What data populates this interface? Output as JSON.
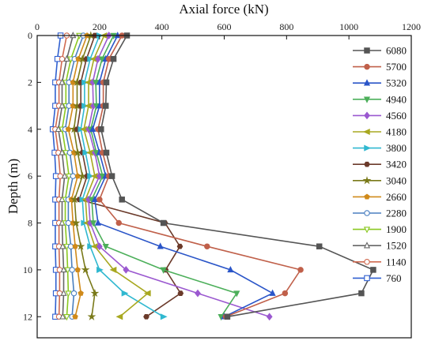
{
  "chart_data": {
    "type": "line",
    "xlabel": "Axial force (kN)",
    "ylabel": "Depth (m)",
    "x_axis_position": "top",
    "xlim": [
      0,
      1200
    ],
    "ylim": [
      0,
      12.9
    ],
    "y_reversed": true,
    "xticks": [
      0,
      200,
      400,
      600,
      800,
      1000,
      1200
    ],
    "yticks": [
      0,
      2,
      4,
      6,
      8,
      10,
      12
    ],
    "grid": false,
    "legend_position": "right",
    "depths": [
      0,
      1,
      2,
      3,
      4,
      5,
      6,
      7,
      8,
      9,
      10,
      11,
      12
    ],
    "series": [
      {
        "name": "6080",
        "color": "#555555",
        "marker": "square",
        "values": [
          288,
          245,
          222,
          220,
          205,
          222,
          240,
          272,
          405,
          905,
          1078,
          1040,
          610
        ]
      },
      {
        "name": "5700",
        "color": "#c0604a",
        "marker": "circle",
        "values": [
          272,
          230,
          212,
          212,
          195,
          210,
          230,
          200,
          262,
          545,
          845,
          795,
          605
        ]
      },
      {
        "name": "5320",
        "color": "#2a55c8",
        "marker": "triangle-up",
        "values": [
          258,
          220,
          200,
          200,
          178,
          200,
          220,
          185,
          195,
          395,
          620,
          755,
          600
        ]
      },
      {
        "name": "4940",
        "color": "#4caf5a",
        "marker": "triangle-down",
        "values": [
          245,
          208,
          188,
          190,
          172,
          190,
          210,
          175,
          180,
          220,
          405,
          640,
          590
        ]
      },
      {
        "name": "4560",
        "color": "#9b59d0",
        "marker": "diamond",
        "values": [
          230,
          195,
          178,
          180,
          165,
          185,
          200,
          165,
          170,
          200,
          285,
          515,
          745
        ]
      },
      {
        "name": "4180",
        "color": "#a8a820",
        "marker": "triangle-left",
        "values": [
          215,
          182,
          165,
          165,
          150,
          170,
          185,
          155,
          160,
          185,
          245,
          355,
          265
        ]
      },
      {
        "name": "3800",
        "color": "#30b8d0",
        "marker": "triangle-right",
        "values": [
          200,
          170,
          152,
          152,
          140,
          155,
          170,
          145,
          150,
          170,
          200,
          280,
          405
        ]
      },
      {
        "name": "3420",
        "color": "#6b3a2a",
        "marker": "hexagon",
        "values": [
          185,
          158,
          140,
          140,
          128,
          145,
          160,
          135,
          410,
          458,
          412,
          460,
          350
        ]
      },
      {
        "name": "3040",
        "color": "#7a7a1a",
        "marker": "star",
        "values": [
          172,
          145,
          128,
          128,
          118,
          130,
          145,
          120,
          125,
          140,
          155,
          185,
          175
        ]
      },
      {
        "name": "2660",
        "color": "#d08a1a",
        "marker": "pentagon",
        "values": [
          160,
          132,
          115,
          115,
          100,
          118,
          130,
          110,
          115,
          122,
          130,
          140,
          122
        ]
      },
      {
        "name": "2280",
        "color": "#4a7fc0",
        "marker": "circle-open",
        "values": [
          148,
          120,
          102,
          102,
          90,
          105,
          115,
          100,
          100,
          108,
          112,
          118,
          112
        ]
      },
      {
        "name": "1900",
        "color": "#8ac820",
        "marker": "triangle-down-open",
        "values": [
          135,
          108,
          92,
          92,
          80,
          92,
          102,
          90,
          90,
          95,
          98,
          100,
          95
        ]
      },
      {
        "name": "1520",
        "color": "#666666",
        "marker": "triangle-up-open",
        "values": [
          115,
          95,
          80,
          80,
          68,
          80,
          88,
          80,
          80,
          82,
          85,
          85,
          82
        ]
      },
      {
        "name": "1140",
        "color": "#d06a50",
        "marker": "circle-open",
        "values": [
          95,
          80,
          70,
          70,
          58,
          68,
          74,
          70,
          70,
          70,
          72,
          72,
          70
        ]
      },
      {
        "name": "760",
        "color": "#3060d0",
        "marker": "square-open",
        "values": [
          75,
          65,
          58,
          58,
          50,
          56,
          60,
          58,
          58,
          58,
          60,
          60,
          58
        ]
      }
    ]
  }
}
